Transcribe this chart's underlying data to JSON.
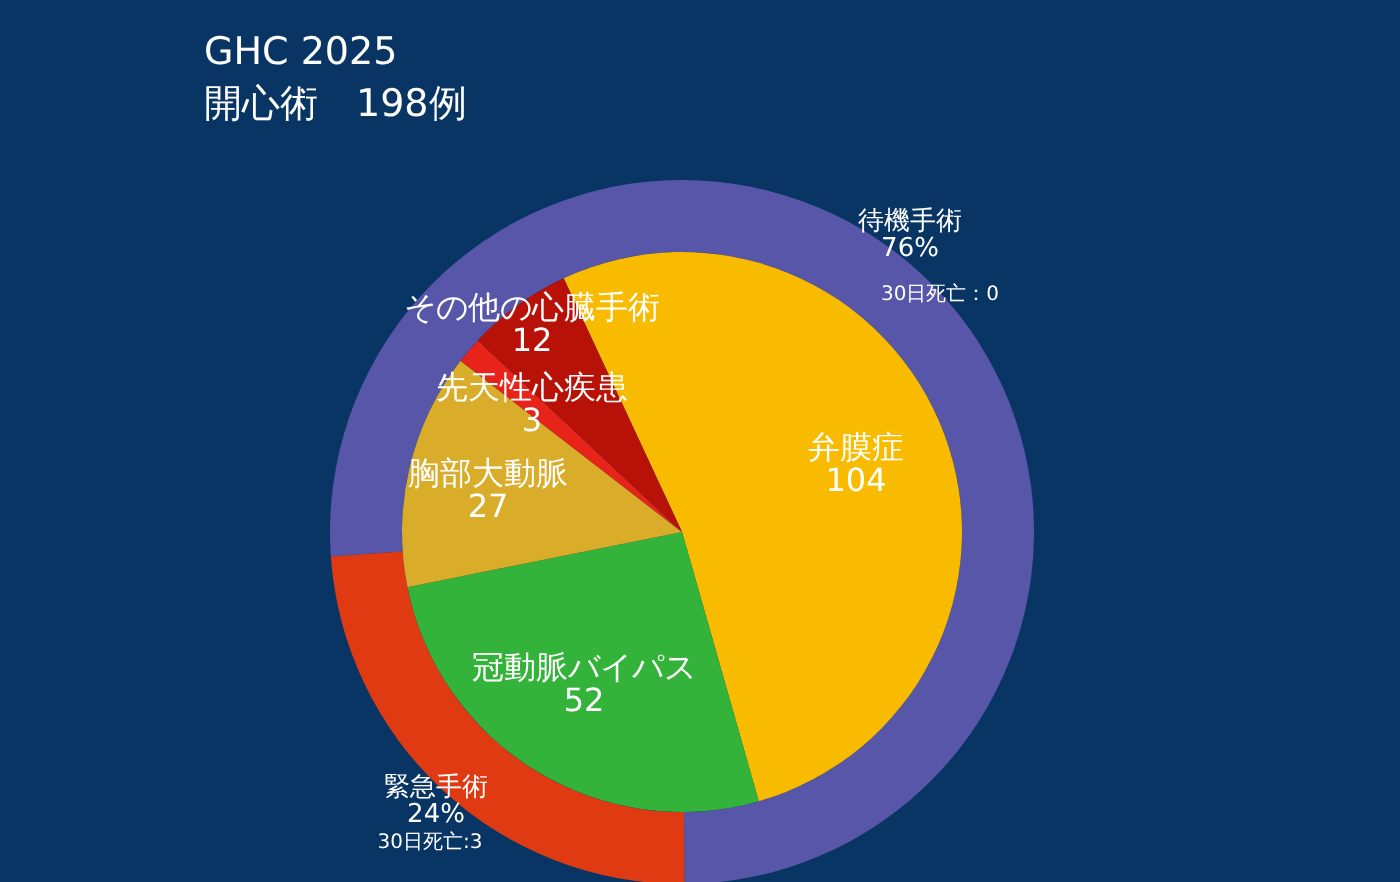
{
  "chart_data": [
    {
      "type": "pie",
      "title": "GHC 2025",
      "subtitle": "開心術　198例",
      "categories": [
        "弁膜症",
        "冠動脈バイパス",
        "胸部大動脈",
        "先天性心疾患",
        "その他の心臓手術"
      ],
      "values": [
        104,
        52,
        27,
        3,
        12
      ],
      "colors": [
        "#f9bb00",
        "#33b33a",
        "#d9ac2a",
        "#e8231a",
        "#b81208"
      ],
      "data_labels": true
    },
    {
      "type": "donut",
      "categories": [
        "待機手術",
        "緊急手術"
      ],
      "values": [
        76,
        24
      ],
      "value_labels": [
        "76%",
        "24%"
      ],
      "colors": [
        "#5856a8",
        "#e03a12"
      ],
      "annotations": [
        "30日死亡：0",
        "30日死亡:3"
      ]
    }
  ]
}
